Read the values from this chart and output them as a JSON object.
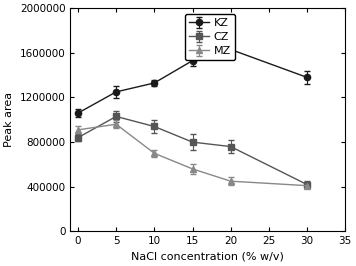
{
  "x": [
    0,
    5,
    10,
    15,
    20,
    30
  ],
  "KZ_y": [
    1060000,
    1250000,
    1330000,
    1530000,
    1630000,
    1380000
  ],
  "CZ_y": [
    840000,
    1030000,
    940000,
    800000,
    760000,
    420000
  ],
  "MZ_y": [
    910000,
    960000,
    700000,
    560000,
    450000,
    410000
  ],
  "KZ_err": [
    35000,
    55000,
    30000,
    45000,
    55000,
    55000
  ],
  "CZ_err": [
    30000,
    50000,
    60000,
    70000,
    55000,
    35000
  ],
  "MZ_err": [
    30000,
    35000,
    30000,
    45000,
    35000,
    25000
  ],
  "KZ_color": "#1a1a1a",
  "CZ_color": "#555555",
  "MZ_color": "#888888",
  "KZ_marker": "o",
  "CZ_marker": "s",
  "MZ_marker": "^",
  "xlabel": "NaCl concentration (% w/v)",
  "ylabel": "Peak area",
  "xlim": [
    -1,
    35
  ],
  "ylim": [
    0,
    2000000
  ],
  "yticks": [
    0,
    400000,
    800000,
    1200000,
    1600000,
    2000000
  ],
  "xticks": [
    0,
    5,
    10,
    15,
    20,
    25,
    30,
    35
  ],
  "legend_labels": [
    "KZ",
    "CZ",
    "MZ"
  ],
  "label_fontsize": 8,
  "tick_fontsize": 7.5,
  "legend_fontsize": 8
}
